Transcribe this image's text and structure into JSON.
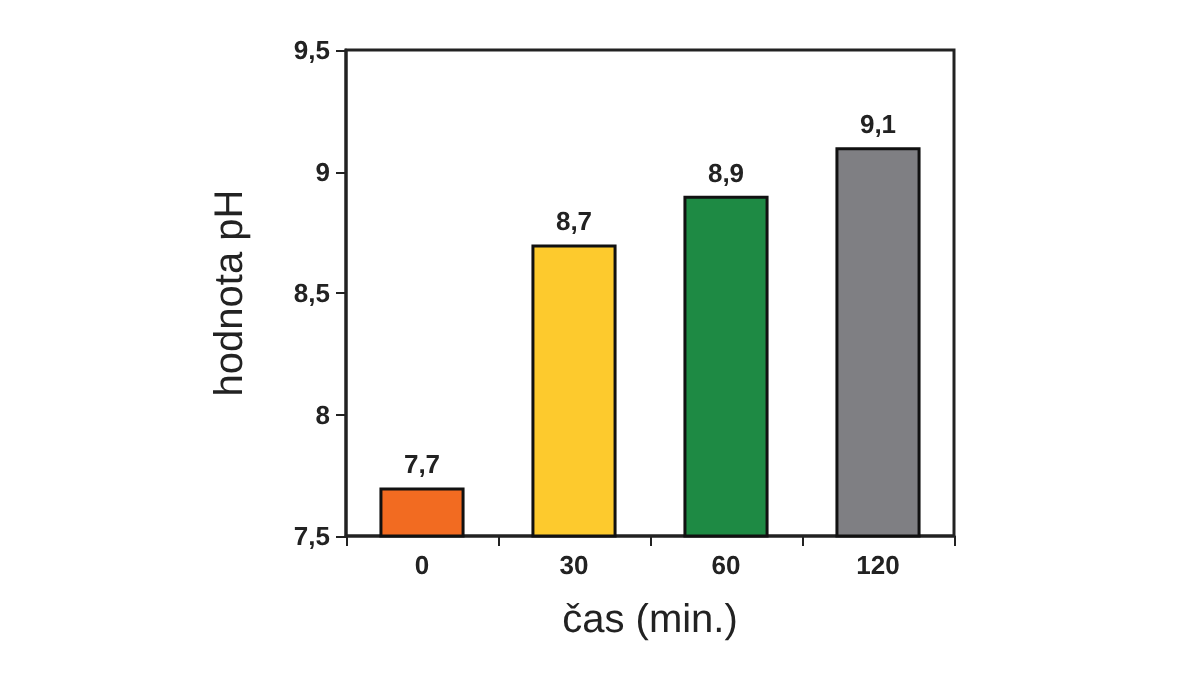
{
  "chart_data": {
    "type": "bar",
    "xlabel": "čas (min.)",
    "ylabel": "hodnota pH",
    "categories": [
      "0",
      "30",
      "60",
      "120"
    ],
    "values": [
      7.7,
      8.7,
      8.9,
      9.1
    ],
    "colors": [
      "#f26b21",
      "#fdca2d",
      "#1e8a44",
      "#7f7f83"
    ],
    "value_labels": [
      "7,7",
      "8,7",
      "8,9",
      "9,1"
    ],
    "ylim": [
      7.5,
      9.5
    ],
    "yticks": [
      {
        "value": 7.5,
        "label": "7,5"
      },
      9,
      {
        "value": 8.5,
        "label": "8,5"
      },
      8,
      {
        "value": 9.5,
        "label": "9,5"
      }
    ],
    "grid": false
  }
}
